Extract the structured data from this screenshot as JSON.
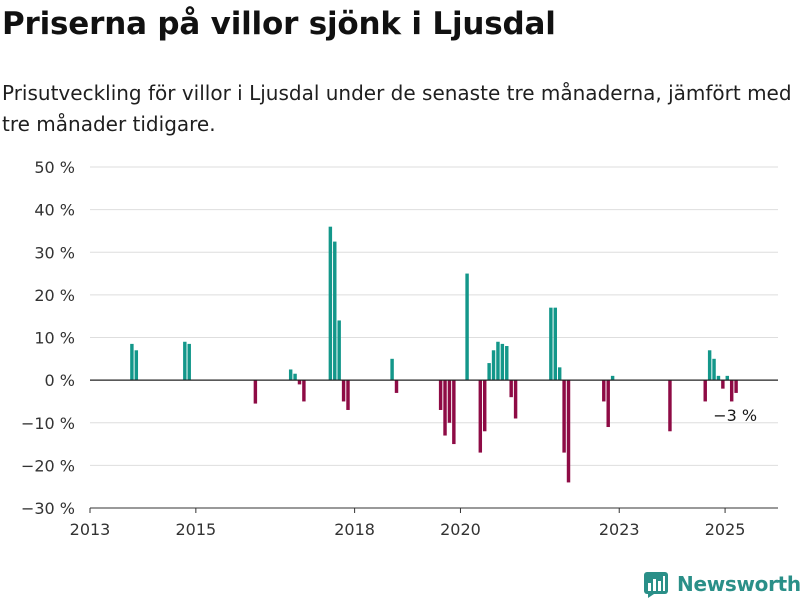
{
  "title": "Priserna på villor sjönk i Ljusdal",
  "subtitle": "Prisutveckling för villor i Ljusdal under de senaste tre månaderna, jämfört med tre månader tidigare.",
  "brand": "Newsworthy",
  "colors": {
    "positive": "#13978a",
    "negative": "#8e0b45",
    "grid": "#dedede",
    "zero_line": "#222222",
    "brand": "#2a8f88"
  },
  "chart_data": {
    "type": "bar",
    "title": "",
    "xlabel": "",
    "ylabel": "",
    "y_unit": "%",
    "ylim": [
      -30,
      50
    ],
    "y_ticks": [
      50,
      40,
      30,
      20,
      10,
      0,
      -10,
      -20,
      -30
    ],
    "y_tick_labels": [
      "50 %",
      "40 %",
      "30 %",
      "20 %",
      "10 %",
      "0 %",
      "−10 %",
      "−20 %",
      "−30 %"
    ],
    "x_ticks": [
      "2013",
      "2015",
      "2018",
      "2020",
      "2023",
      "2025"
    ],
    "x_range": [
      "2013-01",
      "2025-12"
    ],
    "grid": true,
    "legend": "none",
    "annotation": {
      "label": "−3 %",
      "date": "2025-03",
      "value": -3
    },
    "data": [
      {
        "date": "2013-10",
        "value": 8.5
      },
      {
        "date": "2013-11",
        "value": 7
      },
      {
        "date": "2014-10",
        "value": 9
      },
      {
        "date": "2014-11",
        "value": 8.5
      },
      {
        "date": "2016-02",
        "value": -5.5
      },
      {
        "date": "2016-10",
        "value": 2.5
      },
      {
        "date": "2016-11",
        "value": 1.5
      },
      {
        "date": "2016-12",
        "value": -1
      },
      {
        "date": "2017-01",
        "value": -5
      },
      {
        "date": "2017-07",
        "value": 36
      },
      {
        "date": "2017-08",
        "value": 32.5
      },
      {
        "date": "2017-09",
        "value": 14
      },
      {
        "date": "2017-10",
        "value": -5
      },
      {
        "date": "2017-11",
        "value": -7
      },
      {
        "date": "2018-09",
        "value": 5
      },
      {
        "date": "2018-10",
        "value": -3
      },
      {
        "date": "2019-08",
        "value": -7
      },
      {
        "date": "2019-09",
        "value": -13
      },
      {
        "date": "2019-10",
        "value": -10
      },
      {
        "date": "2019-11",
        "value": -15
      },
      {
        "date": "2020-02",
        "value": 25
      },
      {
        "date": "2020-05",
        "value": -17
      },
      {
        "date": "2020-06",
        "value": -12
      },
      {
        "date": "2020-07",
        "value": 4
      },
      {
        "date": "2020-08",
        "value": 7
      },
      {
        "date": "2020-09",
        "value": 9
      },
      {
        "date": "2020-10",
        "value": 8.5
      },
      {
        "date": "2020-11",
        "value": 8
      },
      {
        "date": "2020-12",
        "value": -4
      },
      {
        "date": "2021-01",
        "value": -9
      },
      {
        "date": "2021-09",
        "value": 17
      },
      {
        "date": "2021-10",
        "value": 17
      },
      {
        "date": "2021-11",
        "value": 3
      },
      {
        "date": "2021-12",
        "value": -17
      },
      {
        "date": "2022-01",
        "value": -24
      },
      {
        "date": "2022-09",
        "value": -5
      },
      {
        "date": "2022-10",
        "value": -11
      },
      {
        "date": "2022-11",
        "value": 1
      },
      {
        "date": "2023-12",
        "value": -12
      },
      {
        "date": "2024-08",
        "value": -5
      },
      {
        "date": "2024-09",
        "value": 7
      },
      {
        "date": "2024-10",
        "value": 5
      },
      {
        "date": "2024-11",
        "value": 1
      },
      {
        "date": "2024-12",
        "value": -2
      },
      {
        "date": "2025-01",
        "value": 1
      },
      {
        "date": "2025-02",
        "value": -5
      },
      {
        "date": "2025-03",
        "value": -3
      }
    ]
  }
}
